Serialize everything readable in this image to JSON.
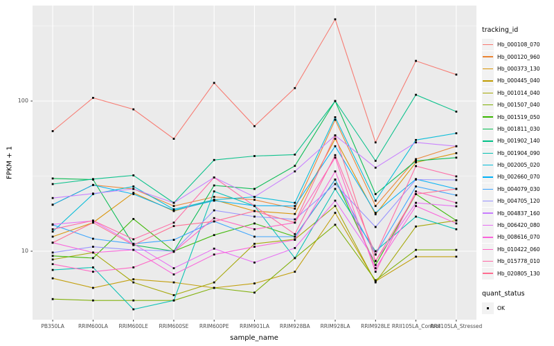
{
  "chart_data": {
    "type": "line",
    "title": "",
    "xlabel": "sample_name",
    "ylabel": "FPKM + 1",
    "y_scale": "log10",
    "y_ticks": [
      10,
      100
    ],
    "y_minor_gridlines": [
      31.6,
      316
    ],
    "ylim": [
      3.5,
      433
    ],
    "grid": "on",
    "panel_bg": "#EBEBEB",
    "grid_color": "#FFFFFF",
    "point_color": "#000000",
    "point_shape": "square",
    "legend": {
      "title": "tracking_id",
      "position": "right"
    },
    "legend2": {
      "title": "quant_status",
      "items": [
        {
          "label": "OK",
          "marker": "black-square"
        }
      ]
    },
    "categories": [
      "PB350LA",
      "RRIM600LA",
      "RRIM600LE",
      "RRIM600SE",
      "RRIM600PE",
      "RRIM901LA",
      "RRIM928BA",
      "RRIM928LA",
      "RRIM928LE",
      "RRII105LA_Control",
      "RRII105LA_Stressed"
    ],
    "series": [
      {
        "name": "Hb_000108_070",
        "color": "#F8766D",
        "values": [
          63,
          105,
          88,
          56,
          132,
          68,
          122,
          350,
          53,
          185,
          150
        ]
      },
      {
        "name": "Hb_000120_960",
        "color": "#EA8331",
        "values": [
          20.4,
          27.6,
          26,
          20,
          23,
          22,
          19.2,
          75,
          20,
          41,
          50
        ]
      },
      {
        "name": "Hb_000373_130",
        "color": "#D89000",
        "values": [
          12.5,
          15.5,
          24.5,
          18.5,
          22,
          18.5,
          17.7,
          56,
          17.6,
          39,
          45
        ]
      },
      {
        "name": "Hb_000445_040",
        "color": "#C09B00",
        "values": [
          6.6,
          5.7,
          6.5,
          6.2,
          5.7,
          6.1,
          7.3,
          18,
          6.3,
          9.2,
          9.2
        ]
      },
      {
        "name": "Hb_001014_040",
        "color": "#A3A500",
        "values": [
          8.8,
          9.8,
          6.2,
          5.1,
          6.2,
          11.2,
          12,
          20,
          6.2,
          14.6,
          16
        ]
      },
      {
        "name": "Hb_001507_040",
        "color": "#7CAE00",
        "values": [
          4.8,
          4.7,
          4.7,
          4.7,
          5.7,
          5.3,
          9,
          15,
          6.4,
          10.2,
          10.2
        ]
      },
      {
        "name": "Hb_001519_050",
        "color": "#39B600",
        "values": [
          9.3,
          9,
          16.4,
          10,
          12.8,
          15.3,
          12.5,
          30,
          8.1,
          24,
          16
        ]
      },
      {
        "name": "Hb_001811_030",
        "color": "#00BB4E",
        "values": [
          30.5,
          30,
          11,
          10,
          27.4,
          26,
          37,
          100,
          24,
          40,
          42
        ]
      },
      {
        "name": "Hb_001902_140",
        "color": "#00C087",
        "values": [
          28,
          30.2,
          32,
          21,
          40.5,
          43,
          44,
          100,
          40,
          110,
          85
        ]
      },
      {
        "name": "Hb_001904_090",
        "color": "#00C0B2",
        "values": [
          7.5,
          7.8,
          4.1,
          4.7,
          25,
          20,
          9,
          26,
          10,
          17,
          14
        ]
      },
      {
        "name": "Hb_002005_020",
        "color": "#00BCD8",
        "values": [
          13.5,
          24,
          27,
          19,
          22,
          23,
          21,
          78,
          21.7,
          55,
          61
        ]
      },
      {
        "name": "Hb_002660_070",
        "color": "#00B0F6",
        "values": [
          20.4,
          27.6,
          24,
          18.7,
          21.7,
          20.1,
          20,
          50,
          18,
          30.2,
          26
        ]
      },
      {
        "name": "Hb_004079_030",
        "color": "#35A2FF",
        "values": [
          15,
          12.1,
          11.2,
          11.9,
          15.8,
          12.5,
          12.5,
          30,
          9.5,
          27,
          23.6
        ]
      },
      {
        "name": "Hb_004705_120",
        "color": "#9590FF",
        "values": [
          9.8,
          10.7,
          10.2,
          10,
          18.7,
          17,
          16.3,
          28,
          14.5,
          30,
          29.8
        ]
      },
      {
        "name": "Hb_004837_160",
        "color": "#C77CFF",
        "values": [
          22.6,
          24.2,
          26,
          21,
          31,
          23,
          34,
          59,
          36,
          53,
          50
        ]
      },
      {
        "name": "Hb_006420_080",
        "color": "#E76BF3",
        "values": [
          15.1,
          15.9,
          11.2,
          7.7,
          10.4,
          8.4,
          10.5,
          21.7,
          8.6,
          21,
          19.9
        ]
      },
      {
        "name": "Hb_008616_070",
        "color": "#FA62DB",
        "values": [
          11.4,
          9.8,
          10.2,
          7,
          9.5,
          10.7,
          11.9,
          34,
          7.7,
          20,
          15.3
        ]
      },
      {
        "name": "Hb_010422_060",
        "color": "#FF61C3",
        "values": [
          8.2,
          7.3,
          7.8,
          9.9,
          16.6,
          14,
          15.5,
          42,
          7.3,
          25,
          21
        ]
      },
      {
        "name": "Hb_015778_010",
        "color": "#FF67A4",
        "values": [
          14,
          16,
          12,
          15.5,
          31,
          20,
          13,
          43.6,
          9.5,
          36.9,
          31.5
        ]
      },
      {
        "name": "Hb_020805_130",
        "color": "#FF6C90",
        "values": [
          11.4,
          15.5,
          11,
          14.7,
          15.8,
          18.5,
          15.5,
          59,
          8.6,
          24,
          26
        ]
      }
    ]
  }
}
